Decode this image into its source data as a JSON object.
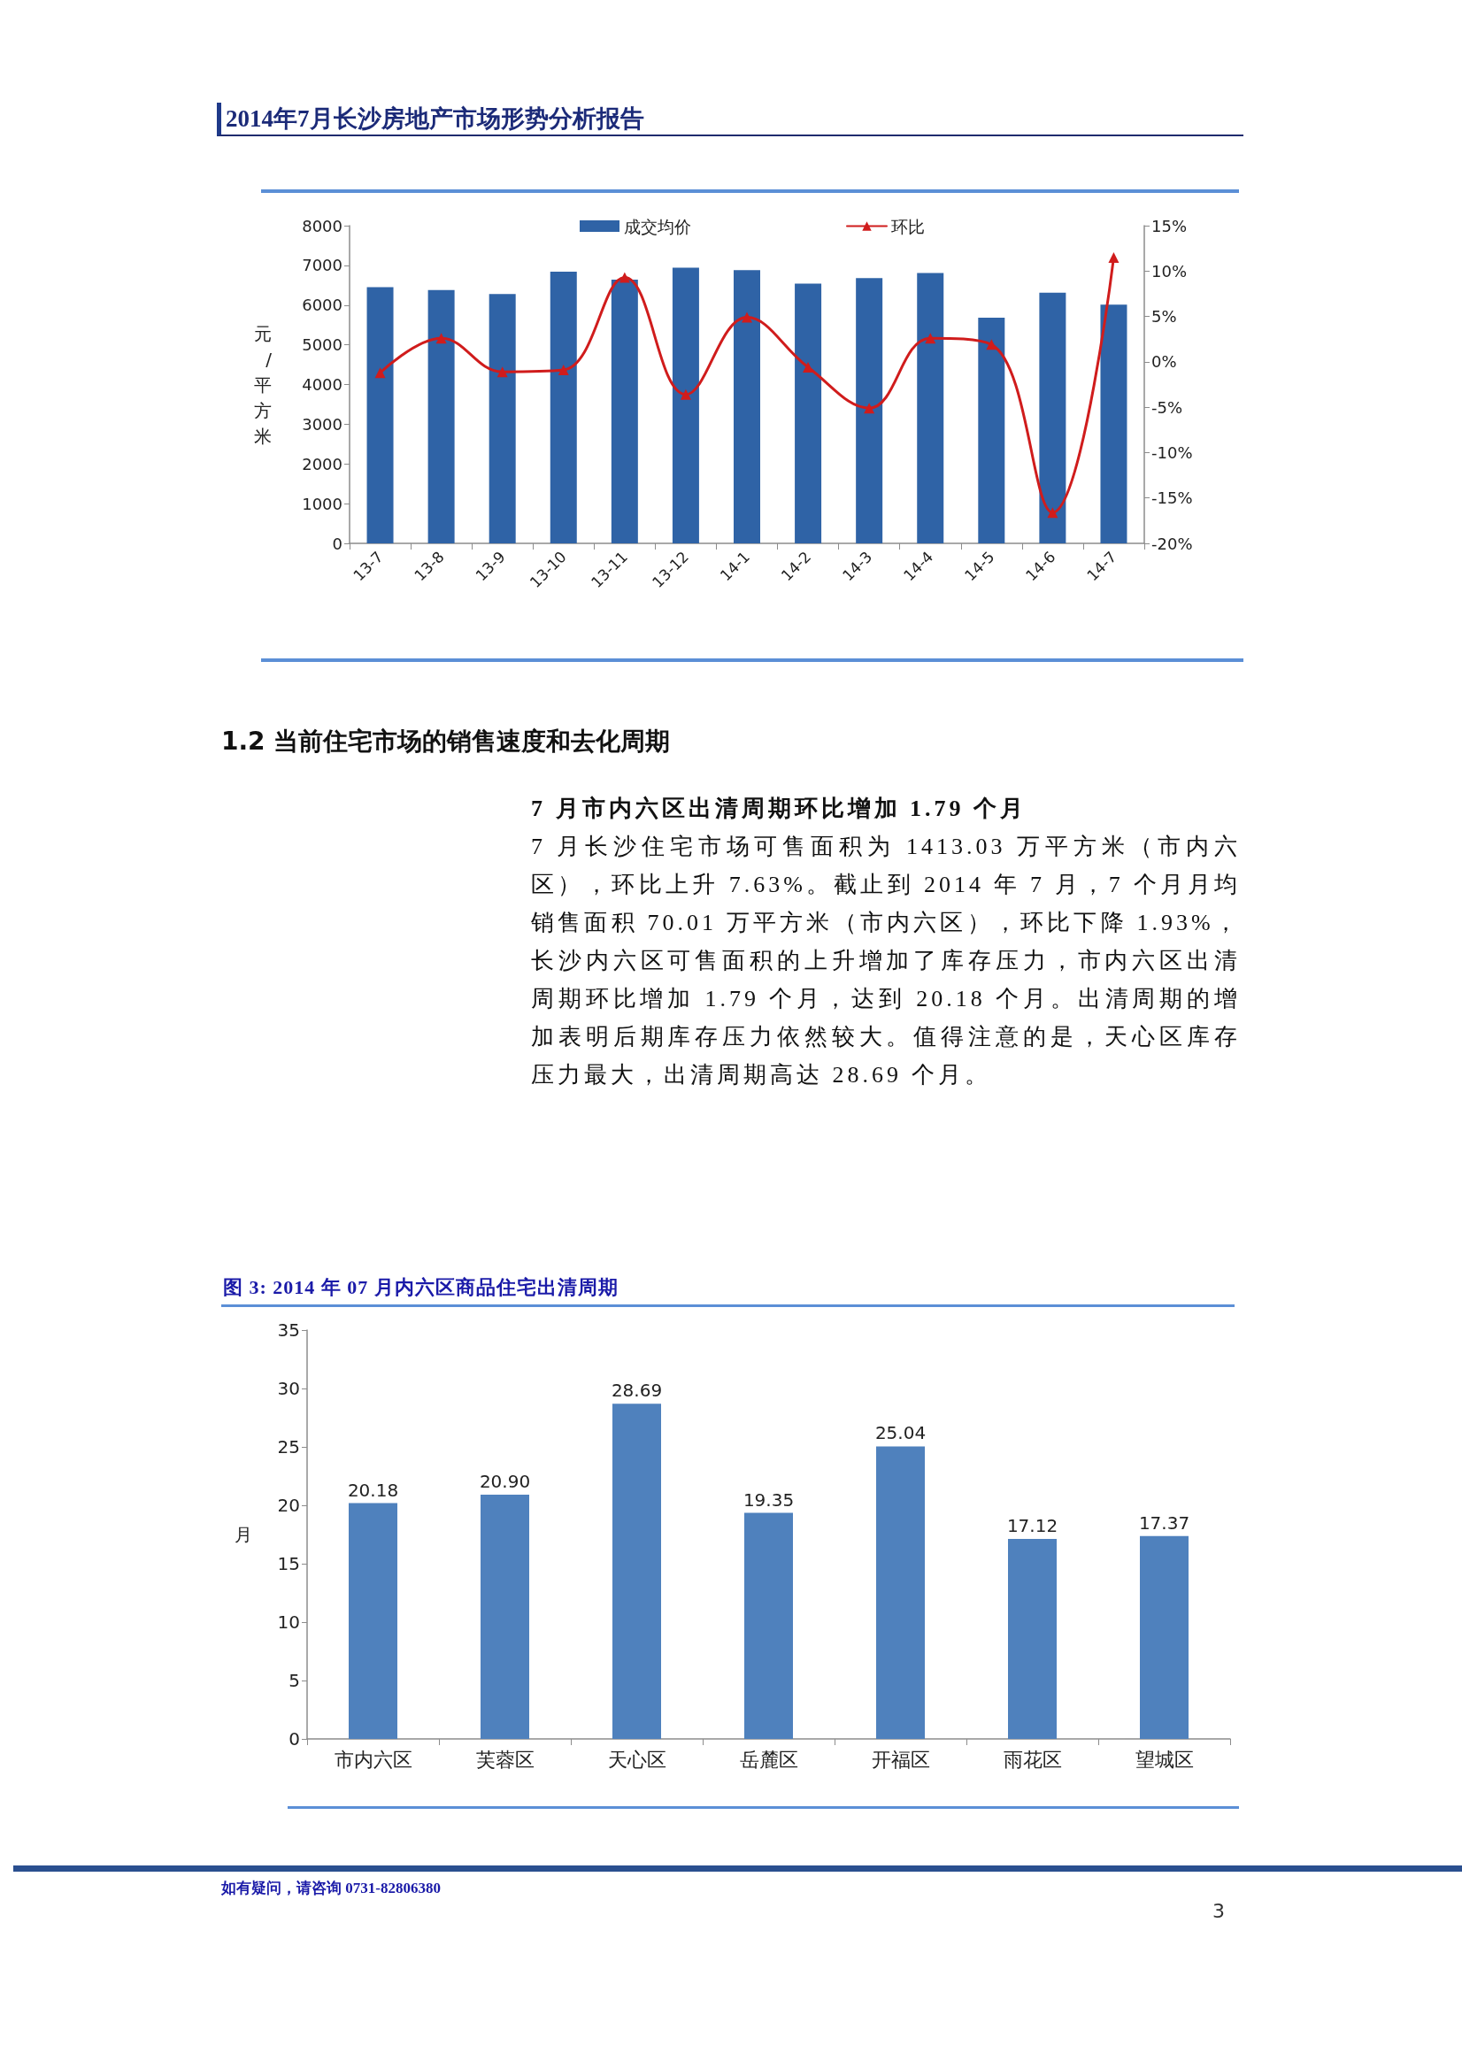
{
  "chart_data": [
    {
      "type": "bar",
      "annotations": [
        "2014年7月长沙房地产市场形势分析报告"
      ],
      "categories": [
        "13-7",
        "13-8",
        "13-9",
        "13-10",
        "13-11",
        "13-12",
        "14-1",
        "14-2",
        "14-3",
        "14-4",
        "14-5",
        "14-6",
        "14-7"
      ],
      "series": [
        {
          "name": "成交均价",
          "type": "bar",
          "color": "#2f63a6",
          "values": [
            6450,
            6380,
            6280,
            6840,
            6640,
            6940,
            6880,
            6540,
            6680,
            6810,
            5680,
            6310,
            6010
          ]
        },
        {
          "name": "环比",
          "type": "line",
          "axis": "y2",
          "color": "#d01c1c",
          "values": [
            -1.2,
            2.6,
            -1.1,
            -0.9,
            9.3,
            -3.6,
            4.9,
            -0.6,
            -5.1,
            2.6,
            1.9,
            -16.6,
            11.5
          ]
        }
      ],
      "ylabel": "元/平方米",
      "ylim": [
        0,
        8000
      ],
      "yticks": [
        0,
        1000,
        2000,
        3000,
        4000,
        5000,
        6000,
        7000,
        8000
      ],
      "y2lim": [
        -20,
        15
      ],
      "y2ticks": [
        {
          "value": -20,
          "label": "-20%"
        },
        {
          "value": -15,
          "label": "-15%"
        },
        {
          "value": -10,
          "label": "-10%"
        },
        {
          "value": -5,
          "label": "-5%"
        },
        {
          "value": 0,
          "label": "0%"
        },
        {
          "value": 5,
          "label": "5%"
        },
        {
          "value": 10,
          "label": "10%"
        },
        {
          "value": 15,
          "label": "15%"
        }
      ],
      "legend": "top",
      "marker": "triangle"
    },
    {
      "type": "bar",
      "title": "图 3: 2014 年 07 月内六区商品住宅出清周期",
      "annotations": [
        "1.2 当前住宅市场的销售速度和去化周期",
        "7 月市内六区出清周期环比增加 1.79 个月",
        "7 月长沙住宅市场可售面积为 1413.03 万平方米（市内六区），环比上升 7.63%。截止到 2014 年 7 月，7 个月月均销售面积 70.01 万平方米（市内六区），环比下降 1.93%，长沙内六区可售面积的上升增加了库存压力，市内六区出清周期环比增加 1.79 个月，达到 20.18 个月。出清周期的增加表明后期库存压力依然较大。值得注意的是，天心区库存压力最大，出清周期高达 28.69 个月。",
        "如有疑问，请咨询 0731-82806380",
        "3"
      ],
      "categories": [
        "市内六区",
        "芙蓉区",
        "天心区",
        "岳麓区",
        "开福区",
        "雨花区",
        "望城区"
      ],
      "values": [
        20.18,
        20.9,
        28.69,
        19.35,
        25.04,
        17.12,
        17.37
      ],
      "value_labels": [
        "20.18",
        "20.90",
        "28.69",
        "19.35",
        "25.04",
        "17.12",
        "17.37"
      ],
      "color": "#4f81bd",
      "ylabel": "月",
      "ylim": [
        0,
        35
      ],
      "yticks": [
        0,
        5,
        10,
        15,
        20,
        25,
        30,
        35
      ]
    }
  ]
}
